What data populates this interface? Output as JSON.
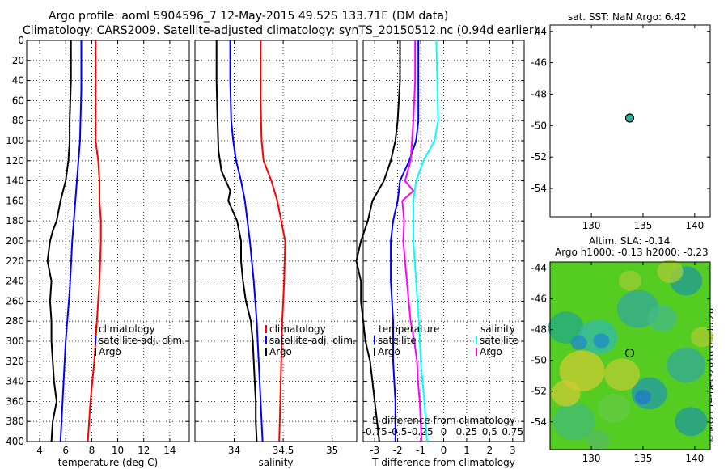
{
  "titles": {
    "line1": "Argo profile: aoml 5904596_7 12-May-2015 49.52S 133.71E (DM data)",
    "line2": "Climatology: CARS2009. Satellite-adjusted climatology: synTS_20150512.nc (0.94d earlier)",
    "sst": "sat. SST: NaN Argo: 6.42",
    "sla": "Altim. SLA: -0.14",
    "h": "Argo h1000: -0.13 h2000: -0.23",
    "credit": "©IMOS 14-Dec-2018 05:56:28"
  },
  "colors": {
    "climatology": "#ff0000",
    "satellite": "#0000ff",
    "argo": "#000000",
    "salinity_diff": "#00ffff",
    "argo_s_diff": "#ff00ff"
  },
  "chart_data": [
    {
      "type": "line",
      "name": "temperature",
      "xlabel": "temperature (deg C)",
      "ylabel": "depth",
      "xlim": [
        3,
        15.5
      ],
      "ylim": [
        400,
        0
      ],
      "xticks": [
        4,
        6,
        8,
        10,
        12,
        14
      ],
      "yticks": [
        0,
        20,
        40,
        60,
        80,
        100,
        120,
        140,
        160,
        180,
        200,
        220,
        240,
        260,
        280,
        300,
        320,
        340,
        360,
        380,
        400
      ],
      "grid": true,
      "legend": [
        "climatology",
        "satellite-adj. clim.",
        "Argo"
      ],
      "series": [
        {
          "name": "climatology",
          "depth": [
            0,
            50,
            100,
            120,
            140,
            160,
            180,
            200,
            240,
            280,
            320,
            360,
            400
          ],
          "values": [
            8.3,
            8.3,
            8.3,
            8.5,
            8.6,
            8.6,
            8.7,
            8.7,
            8.6,
            8.4,
            8.2,
            7.9,
            7.7
          ]
        },
        {
          "name": "satellite-adj. clim.",
          "depth": [
            0,
            50,
            100,
            150,
            200,
            250,
            300,
            350,
            400
          ],
          "values": [
            7.2,
            7.2,
            7.1,
            6.8,
            6.5,
            6.3,
            6.0,
            5.8,
            5.6
          ]
        },
        {
          "name": "Argo",
          "depth": [
            0,
            40,
            80,
            100,
            120,
            140,
            160,
            180,
            190,
            200,
            220,
            240,
            260,
            280,
            300,
            320,
            340,
            360,
            380,
            400
          ],
          "values": [
            6.4,
            6.4,
            6.3,
            6.3,
            6.2,
            6.0,
            5.6,
            5.3,
            5.0,
            4.8,
            4.6,
            4.9,
            4.8,
            4.9,
            4.9,
            5.0,
            5.1,
            5.3,
            5.0,
            4.9
          ]
        }
      ]
    },
    {
      "type": "line",
      "name": "salinity",
      "xlabel": "salinity",
      "xlim": [
        33.6,
        35.25
      ],
      "ylim": [
        400,
        0
      ],
      "xticks": [
        34,
        34.5,
        35
      ],
      "grid": true,
      "legend": [
        "climatology",
        "satellite-adj. clim.",
        "Argo"
      ],
      "series": [
        {
          "name": "climatology",
          "depth": [
            0,
            60,
            100,
            120,
            140,
            160,
            180,
            200,
            240,
            280,
            320,
            360,
            400
          ],
          "values": [
            34.27,
            34.27,
            34.28,
            34.3,
            34.38,
            34.44,
            34.48,
            34.52,
            34.51,
            34.49,
            34.48,
            34.47,
            34.46
          ]
        },
        {
          "name": "satellite-adj. clim.",
          "depth": [
            0,
            40,
            80,
            100,
            120,
            140,
            160,
            200,
            240,
            280,
            320,
            360,
            400
          ],
          "values": [
            33.96,
            33.96,
            33.97,
            33.99,
            34.02,
            34.07,
            34.11,
            34.16,
            34.2,
            34.23,
            34.25,
            34.27,
            34.29
          ]
        },
        {
          "name": "Argo",
          "depth": [
            0,
            40,
            80,
            110,
            130,
            150,
            160,
            180,
            200,
            220,
            240,
            260,
            280,
            300,
            320,
            340,
            360,
            380,
            400
          ],
          "values": [
            33.82,
            33.82,
            33.83,
            33.84,
            33.87,
            33.96,
            33.94,
            34.03,
            34.07,
            34.07,
            34.09,
            34.12,
            34.17,
            34.19,
            34.2,
            34.21,
            34.22,
            34.22,
            34.23
          ]
        }
      ]
    },
    {
      "type": "line",
      "name": "difference",
      "xlabel": "T difference from climatology",
      "top_xlabel": "S difference from climatology",
      "xlim": [
        -3.5,
        3.5
      ],
      "ylim": [
        400,
        0
      ],
      "xticks": [
        -3,
        -2,
        -1,
        0,
        1,
        2,
        3
      ],
      "top_xticks": [
        "-0.75",
        "-0.5",
        "-0.25",
        "0",
        "0.25",
        "0.5",
        "0.75"
      ],
      "grid": true,
      "legend": {
        "temperature": "temperature",
        "salinity": "salinity",
        "satellite": "satellite",
        "argo": "Argo"
      },
      "series": [
        {
          "name": "T satellite",
          "depth": [
            0,
            40,
            80,
            100,
            120,
            140,
            160,
            180,
            200,
            240,
            280,
            320,
            360,
            400
          ],
          "values": [
            -1.1,
            -1.1,
            -1.1,
            -1.2,
            -1.5,
            -1.9,
            -2.0,
            -2.2,
            -2.3,
            -2.3,
            -2.2,
            -2.2,
            -2.1,
            -2.1
          ]
        },
        {
          "name": "T Argo",
          "depth": [
            0,
            40,
            80,
            100,
            120,
            140,
            160,
            180,
            200,
            220,
            240,
            260,
            280,
            300,
            320,
            340,
            360,
            380,
            400
          ],
          "values": [
            -1.9,
            -1.9,
            -2.0,
            -2.1,
            -2.3,
            -2.6,
            -3.1,
            -3.3,
            -3.6,
            -3.8,
            -3.6,
            -3.6,
            -3.5,
            -3.4,
            -3.2,
            -3.1,
            -3.0,
            -2.9,
            -2.8
          ]
        },
        {
          "name": "S satellite",
          "depth": [
            0,
            40,
            80,
            100,
            120,
            140,
            160,
            180,
            200,
            240,
            280,
            320,
            360,
            400
          ],
          "values": [
            -0.08,
            -0.07,
            -0.06,
            -0.1,
            -0.22,
            -0.3,
            -0.33,
            -0.33,
            -0.33,
            -0.3,
            -0.27,
            -0.25,
            -0.21,
            -0.18
          ]
        },
        {
          "name": "S Argo",
          "depth": [
            0,
            40,
            80,
            120,
            140,
            150,
            160,
            180,
            200,
            220,
            240,
            260,
            280,
            300,
            320,
            340,
            360,
            380,
            400
          ],
          "values": [
            -0.31,
            -0.31,
            -0.33,
            -0.36,
            -0.42,
            -0.33,
            -0.45,
            -0.43,
            -0.44,
            -0.42,
            -0.4,
            -0.38,
            -0.36,
            -0.32,
            -0.29,
            -0.28,
            -0.26,
            -0.25,
            -0.24
          ]
        }
      ]
    },
    {
      "type": "scatter",
      "name": "sst-map",
      "xlim": [
        126,
        141.5
      ],
      "ylim": [
        -55.8,
        -43.6
      ],
      "xticks": [
        130,
        135,
        140
      ],
      "yticks": [
        -44,
        -46,
        -48,
        -50,
        -52,
        -54
      ],
      "points": [
        {
          "x": 133.71,
          "y": -49.52
        }
      ]
    },
    {
      "type": "heatmap",
      "name": "sla-map",
      "xlim": [
        126,
        141.5
      ],
      "ylim": [
        -55.8,
        -43.6
      ],
      "xticks": [
        130,
        135,
        140
      ],
      "yticks": [
        -44,
        -46,
        -48,
        -50,
        -52,
        -54
      ],
      "points": [
        {
          "x": 133.71,
          "y": -49.52
        }
      ]
    }
  ]
}
